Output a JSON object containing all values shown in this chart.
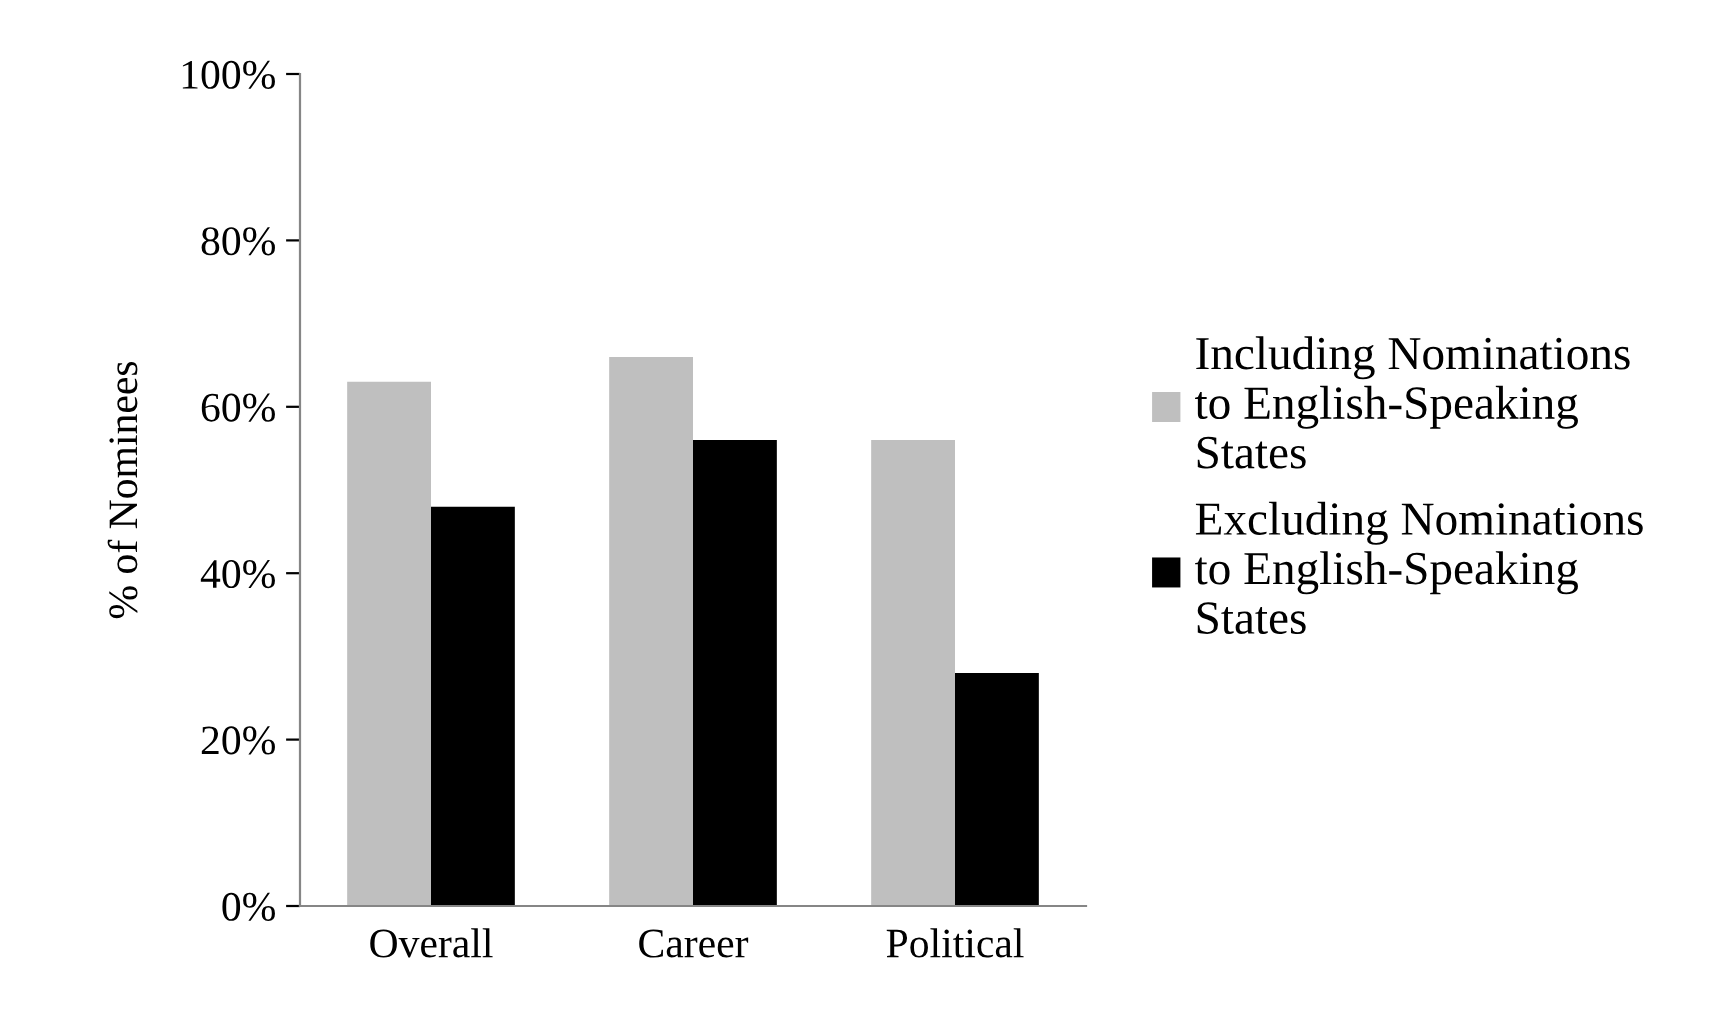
{
  "chart_data": {
    "type": "bar",
    "ylabel": "% of Nominees",
    "categories": [
      "Overall",
      "Career",
      "Political"
    ],
    "series": [
      {
        "name": "Including Nominations\nto English-Speaking\nStates",
        "color": "#bfbfbf",
        "values": [
          63,
          66,
          56
        ]
      },
      {
        "name": "Excluding Nominations\nto English-Speaking\nStates",
        "color": "#000000",
        "values": [
          48,
          56,
          28
        ]
      }
    ],
    "ylim": [
      0,
      100
    ],
    "yticks": [
      {
        "value": 0,
        "label": "0%"
      },
      {
        "value": 20,
        "label": "20%"
      },
      {
        "value": 40,
        "label": "40%"
      },
      {
        "value": 60,
        "label": "60%"
      },
      {
        "value": 80,
        "label": "80%"
      },
      {
        "value": 100,
        "label": "100%"
      }
    ],
    "grid": false,
    "legend": "right"
  }
}
